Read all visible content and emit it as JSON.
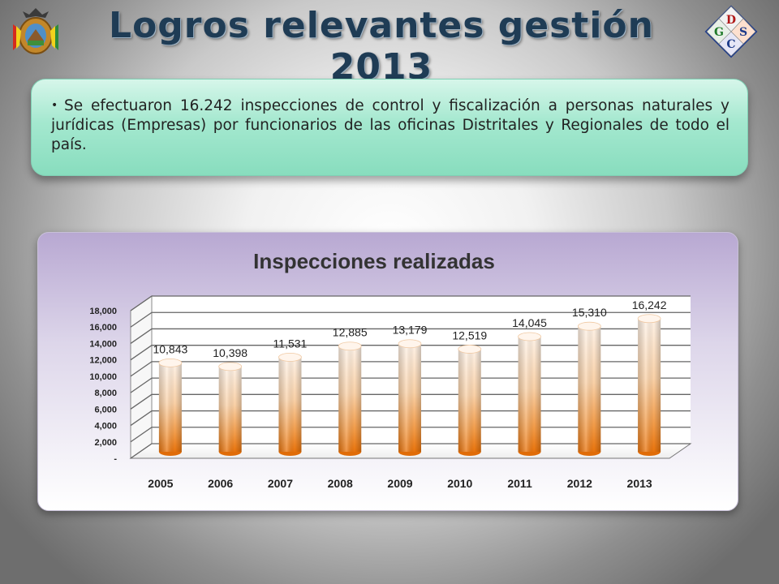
{
  "header": {
    "title": "Logros relevantes gestión 2013",
    "logo_letters": {
      "top": "D",
      "left": "G",
      "right": "S",
      "bottom": "C"
    }
  },
  "bullet": {
    "text": "Se efectuaron 16.242 inspecciones de control y fiscalización a personas naturales y jurídicas (Empresas) por funcionarios de las oficinas Distritales y Regionales de todo el país."
  },
  "chart_data": {
    "type": "bar",
    "title": "Inspecciones realizadas",
    "categories": [
      "2005",
      "2006",
      "2007",
      "2008",
      "2009",
      "2010",
      "2011",
      "2012",
      "2013"
    ],
    "values": [
      10843,
      10398,
      11531,
      12885,
      13179,
      12519,
      14045,
      15310,
      16242
    ],
    "value_labels": [
      "10,843",
      "10,398",
      "11,531",
      "12,885",
      "13,179",
      "12,519",
      "14,045",
      "15,310",
      "16,242"
    ],
    "y_ticks": [
      0,
      2000,
      4000,
      6000,
      8000,
      10000,
      12000,
      14000,
      16000,
      18000
    ],
    "y_tick_labels": [
      "-",
      "2,000",
      "4,000",
      "6,000",
      "8,000",
      "10,000",
      "12,000",
      "14,000",
      "16,000",
      "18,000"
    ],
    "ylim": [
      0,
      18000
    ],
    "grid": true,
    "bar_style": "3d-cylinder",
    "colors": {
      "bar_top": "#fff1e4",
      "bar_bottom": "#ee7a10",
      "grid": "#666666"
    }
  }
}
